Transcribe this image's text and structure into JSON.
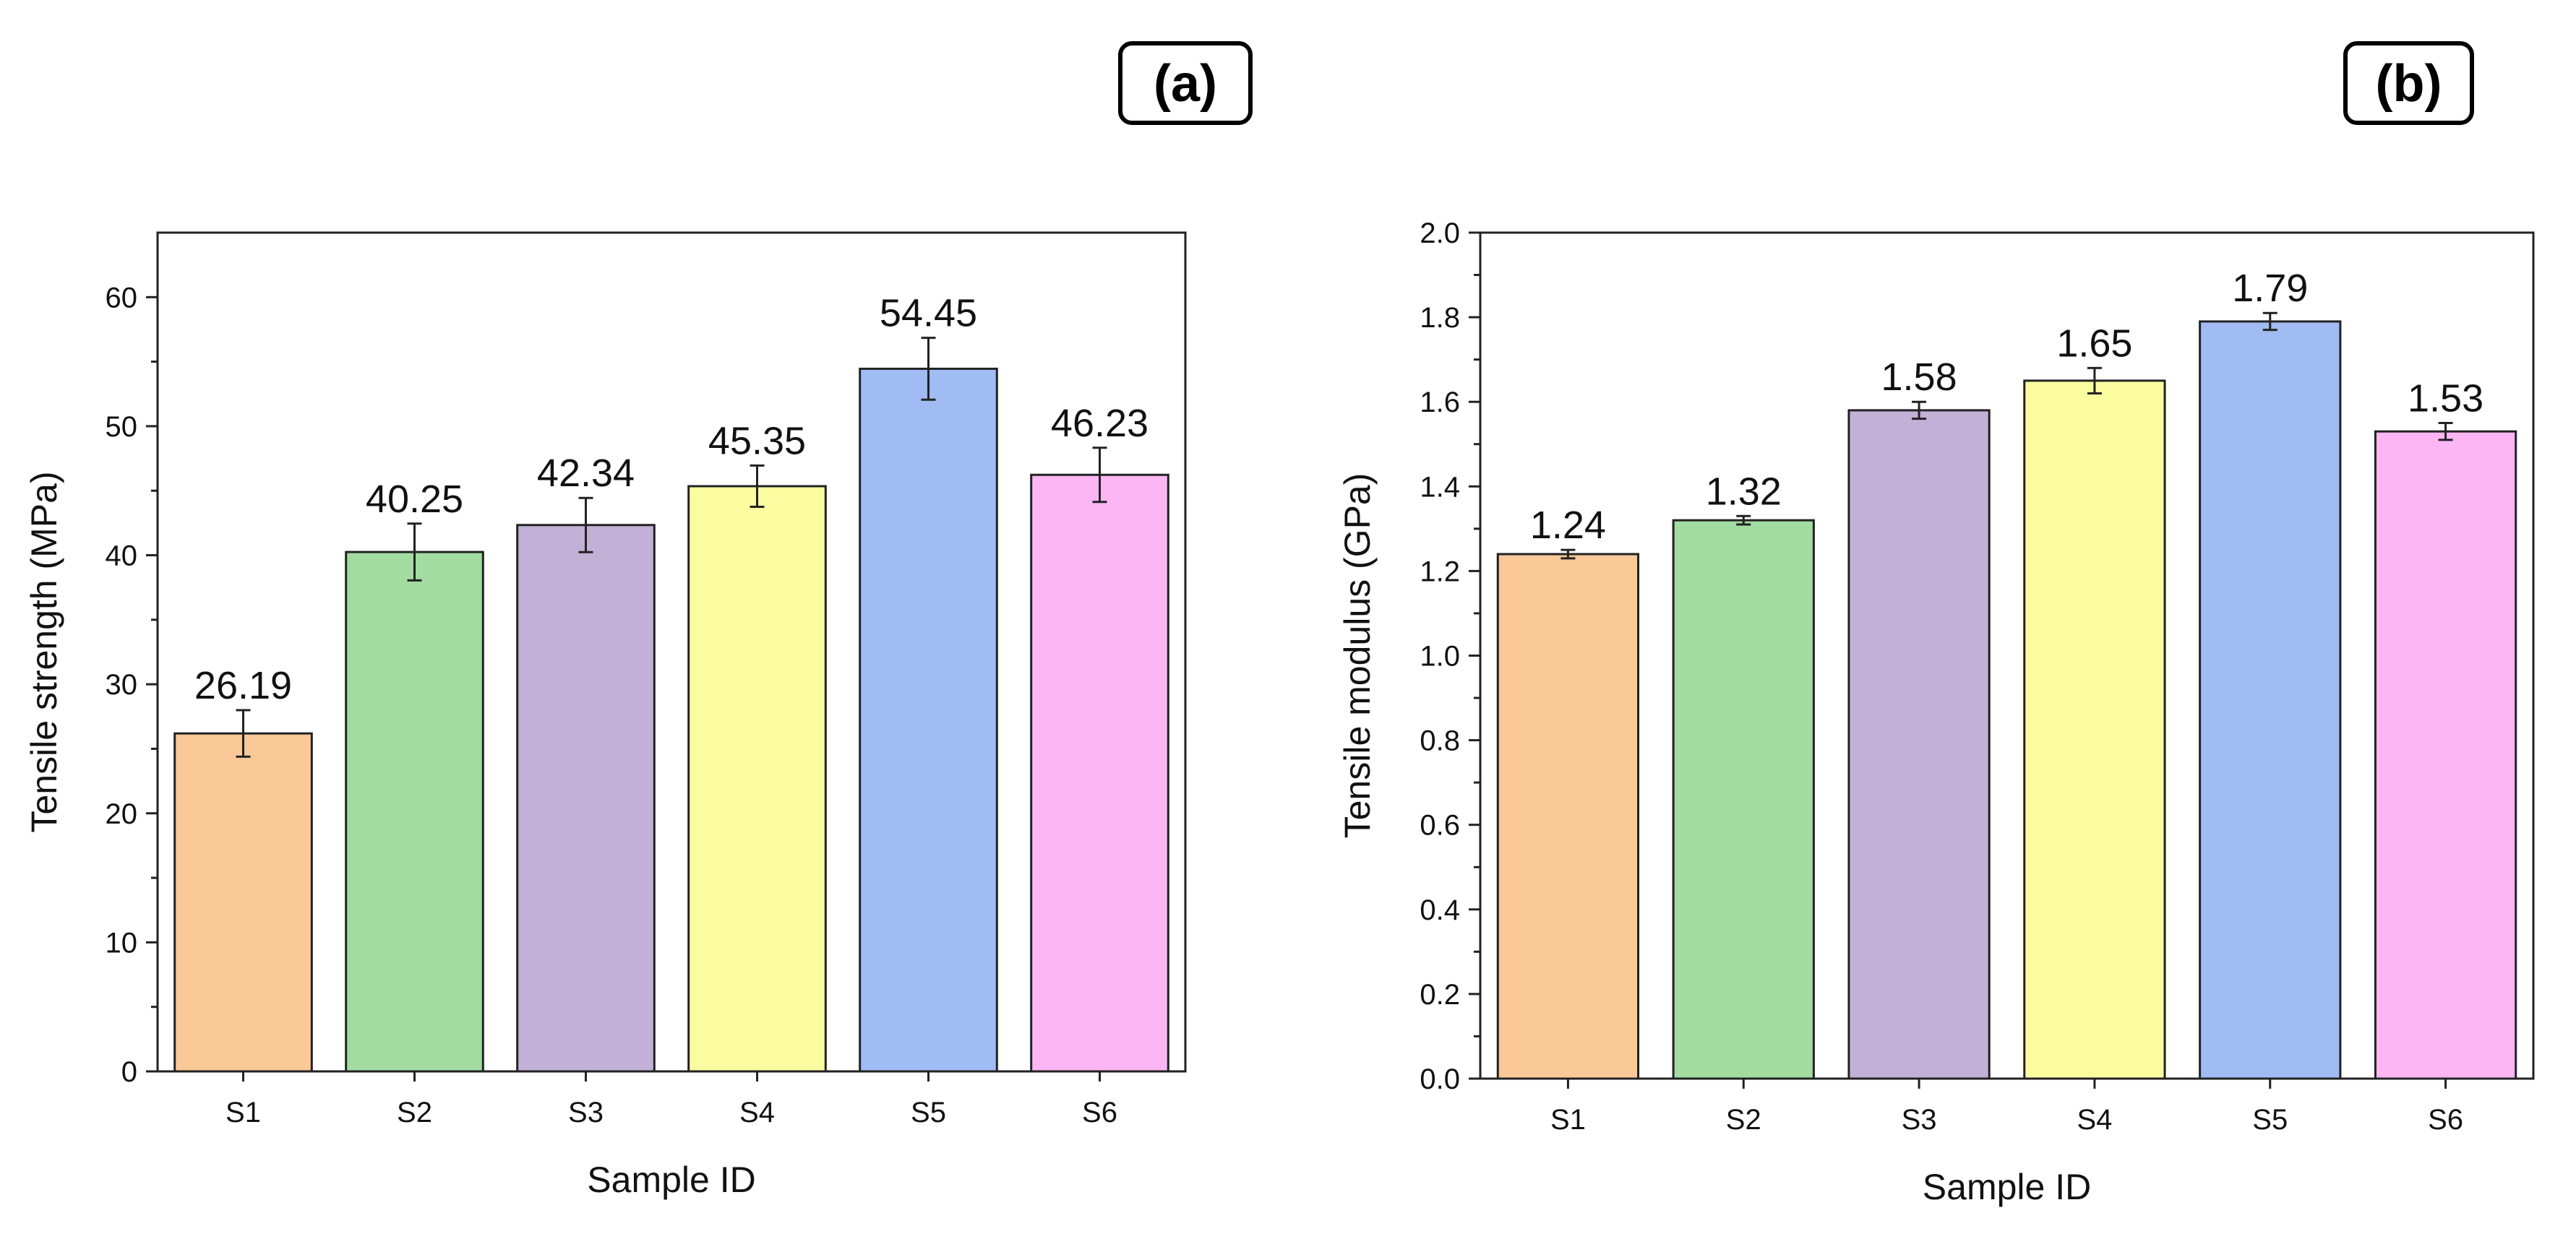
{
  "chart_data": [
    {
      "type": "bar",
      "panel_label": "(a)",
      "categories": [
        "S1",
        "S2",
        "S3",
        "S4",
        "S5",
        "S6"
      ],
      "values": [
        26.19,
        40.25,
        42.34,
        45.35,
        54.45,
        46.23
      ],
      "value_labels": [
        "26.19",
        "40.25",
        "42.34",
        "45.35",
        "54.45",
        "46.23"
      ],
      "errors": [
        1.8,
        2.2,
        2.1,
        1.6,
        2.4,
        2.1
      ],
      "colors": [
        "#fbc898",
        "#a2dca0",
        "#c2b0d6",
        "#fbfba0",
        "#a0bcf2",
        "#fcb6f4"
      ],
      "xlabel": "Sample ID",
      "ylabel": "Tensile strength (MPa)",
      "ylim": [
        0,
        65
      ],
      "yticks": [
        0,
        10,
        20,
        30,
        40,
        50,
        60
      ],
      "ytick_labels": [
        "0",
        "10",
        "20",
        "30",
        "40",
        "50",
        "60"
      ],
      "minor_ticks": [
        5,
        15,
        25,
        35,
        45,
        55
      ],
      "grid": false
    },
    {
      "type": "bar",
      "panel_label": "(b)",
      "categories": [
        "S1",
        "S2",
        "S3",
        "S4",
        "S5",
        "S6"
      ],
      "values": [
        1.24,
        1.32,
        1.58,
        1.65,
        1.79,
        1.53
      ],
      "value_labels": [
        "1.24",
        "1.32",
        "1.58",
        "1.65",
        "1.79",
        "1.53"
      ],
      "errors": [
        0.01,
        0.01,
        0.02,
        0.03,
        0.02,
        0.02
      ],
      "colors": [
        "#fbc898",
        "#a2dca0",
        "#c2b0d6",
        "#fbfba0",
        "#a0bcf2",
        "#fcb6f4"
      ],
      "xlabel": "Sample ID",
      "ylabel": "Tensile modulus (GPa)",
      "ylim": [
        0,
        2.0
      ],
      "yticks": [
        0,
        0.2,
        0.4,
        0.6,
        0.8,
        1.0,
        1.2,
        1.4,
        1.6,
        1.8,
        2.0
      ],
      "ytick_labels": [
        "0.0",
        "0.2",
        "0.4",
        "0.6",
        "0.8",
        "1.0",
        "1.2",
        "1.4",
        "1.6",
        "1.8",
        "2.0"
      ],
      "minor_ticks": [
        0.1,
        0.3,
        0.5,
        0.7,
        0.9,
        1.1,
        1.3,
        1.5,
        1.7,
        1.9
      ],
      "grid": false
    }
  ]
}
